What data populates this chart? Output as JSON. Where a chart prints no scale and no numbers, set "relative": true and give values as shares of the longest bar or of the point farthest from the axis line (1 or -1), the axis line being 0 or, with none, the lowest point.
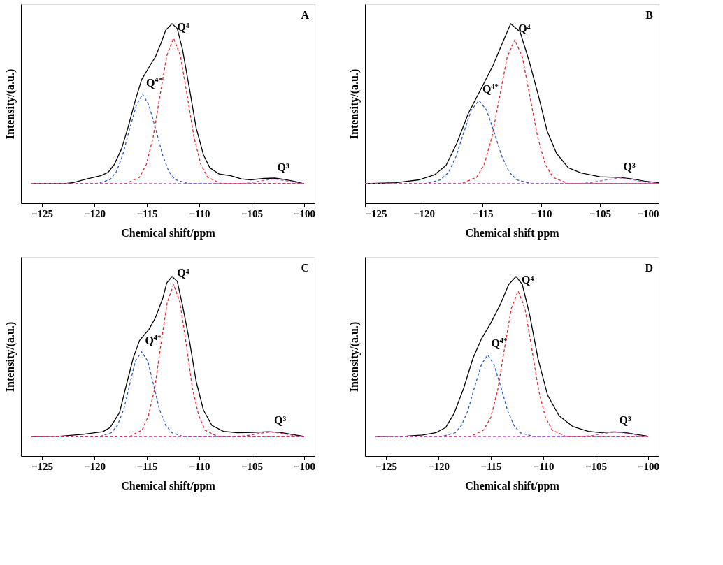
{
  "chart_data": [
    {
      "type": "line",
      "title": "A",
      "xlabel": "Chemical shift/ppm",
      "ylabel": "Intensity/(a.u.)",
      "relative": true,
      "xlim": [
        -127,
        -99
      ],
      "xticks": [
        -125,
        -120,
        -115,
        -110,
        -105,
        -100
      ],
      "grid": false,
      "marker": "none",
      "series": [
        {
          "color": "#000000",
          "line_style": "solid",
          "x": [
            -126,
            -122.8,
            -122.0,
            -120.7,
            -119.4,
            -118.7,
            -118.1,
            -117.4,
            -116.8,
            -116.1,
            -115.5,
            -114.6,
            -114.2,
            -113.7,
            -113.2,
            -112.6,
            -112.1,
            -111.6,
            -110.9,
            -110.3,
            -109.6,
            -109.0,
            -108.1,
            -107.0,
            -106.0,
            -105.1,
            -103.8,
            -102.8,
            -101.8,
            -100.8,
            -100.1
          ],
          "values": [
            0,
            0,
            0.007,
            0.03,
            0.05,
            0.07,
            0.12,
            0.22,
            0.35,
            0.52,
            0.65,
            0.75,
            0.79,
            0.87,
            0.96,
            1.0,
            0.97,
            0.84,
            0.58,
            0.35,
            0.18,
            0.1,
            0.06,
            0.05,
            0.03,
            0.024,
            0.033,
            0.035,
            0.026,
            0.013,
            0
          ]
        },
        {
          "color": "#2a5cc8",
          "line_style": "dashed",
          "x": [
            -126,
            -119.8,
            -118.5,
            -117.9,
            -117.3,
            -116.65,
            -116.0,
            -115.4,
            -114.8,
            -114.15,
            -113.5,
            -112.9,
            -112.3,
            -111.0,
            -100
          ],
          "values": [
            0,
            0,
            0.025,
            0.075,
            0.18,
            0.34,
            0.49,
            0.56,
            0.49,
            0.34,
            0.18,
            0.075,
            0.025,
            0,
            0
          ]
        },
        {
          "color": "#e8202a",
          "line_style": "dashed",
          "x": [
            -126,
            -117,
            -115.7,
            -115.05,
            -114.4,
            -113.75,
            -113.1,
            -112.45,
            -111.8,
            -111.15,
            -110.5,
            -109.85,
            -109.2,
            -107.9,
            -100
          ],
          "values": [
            0,
            0,
            0.04,
            0.12,
            0.29,
            0.55,
            0.8,
            0.91,
            0.8,
            0.55,
            0.29,
            0.12,
            0.04,
            0,
            0
          ]
        },
        {
          "color": "#c850c0",
          "line_style": "dashed",
          "x": [
            -126,
            -106.5,
            -105.3,
            -104.1,
            -102.9,
            -101.7,
            -100.5,
            -100
          ],
          "values": [
            0,
            0,
            0.004,
            0.018,
            0.03,
            0.018,
            0.004,
            0
          ]
        }
      ],
      "annotations": [
        {
          "text": "Q⁴",
          "x": -112.45,
          "y": 0.91
        },
        {
          "text": "Q$^{4*}$",
          "x": -115.4,
          "y": 0.56
        },
        {
          "text": "Q³",
          "x": -102.9,
          "y": 0.03
        }
      ]
    },
    {
      "type": "line",
      "title": "B",
      "xlabel": "Chemical shift ppm",
      "ylabel": "Intensity/(a.u.)",
      "relative": true,
      "xlim": [
        -125,
        -100
      ],
      "xticks": [
        -125,
        -120,
        -115,
        -110,
        -105,
        -100
      ],
      "grid": false,
      "marker": "none",
      "series": [
        {
          "color": "#000000",
          "line_style": "solid",
          "x": [
            -125,
            -122.4,
            -120.4,
            -119.1,
            -118.1,
            -117.2,
            -116.2,
            -115.0,
            -114.1,
            -113.3,
            -112.6,
            -111.8,
            -111.0,
            -110.2,
            -109.5,
            -108.7,
            -107.7,
            -106.6,
            -105.0,
            -103.3,
            -102.3,
            -101.2,
            -100
          ],
          "values": [
            0,
            0.006,
            0.024,
            0.055,
            0.115,
            0.25,
            0.44,
            0.61,
            0.74,
            0.88,
            1.0,
            0.95,
            0.76,
            0.54,
            0.33,
            0.19,
            0.1,
            0.067,
            0.043,
            0.039,
            0.03,
            0.016,
            0.006
          ]
        },
        {
          "color": "#2a5cc8",
          "line_style": "dashed",
          "x": [
            -125,
            -119.9,
            -118.6,
            -117.9,
            -117.25,
            -116.6,
            -115.95,
            -115.3,
            -114.65,
            -114.0,
            -113.35,
            -112.7,
            -112.05,
            -110.8,
            -100
          ],
          "values": [
            0,
            0,
            0.023,
            0.07,
            0.17,
            0.32,
            0.46,
            0.52,
            0.46,
            0.32,
            0.17,
            0.07,
            0.023,
            0,
            0
          ]
        },
        {
          "color": "#e8202a",
          "line_style": "dashed",
          "x": [
            -125,
            -116.8,
            -115.5,
            -114.85,
            -114.2,
            -113.55,
            -112.9,
            -112.25,
            -111.6,
            -110.95,
            -110.3,
            -109.65,
            -109.0,
            -107.7,
            -100
          ],
          "values": [
            0,
            0,
            0.04,
            0.12,
            0.29,
            0.54,
            0.79,
            0.9,
            0.79,
            0.54,
            0.29,
            0.12,
            0.04,
            0,
            0
          ]
        },
        {
          "color": "#c850c0",
          "line_style": "dashed",
          "x": [
            -125,
            -107.2,
            -105.9,
            -104.6,
            -103.3,
            -102.0,
            -100.7,
            -100
          ],
          "values": [
            0,
            0,
            0.005,
            0.022,
            0.036,
            0.022,
            0.005,
            0
          ]
        }
      ],
      "annotations": [
        {
          "text": "Q⁴",
          "x": -112.25,
          "y": 0.9
        },
        {
          "text": "Q$^{4*}$",
          "x": -115.3,
          "y": 0.52
        },
        {
          "text": "Q³",
          "x": -103.3,
          "y": 0.036
        }
      ]
    },
    {
      "type": "line",
      "title": "C",
      "xlabel": "Chemical shift/ppm",
      "ylabel": "Intensity/(a.u.)",
      "relative": true,
      "xlim": [
        -127,
        -99
      ],
      "xticks": [
        -125,
        -120,
        -115,
        -110,
        -105,
        -100
      ],
      "grid": false,
      "marker": "none",
      "series": [
        {
          "color": "#000000",
          "line_style": "solid",
          "x": [
            -126,
            -123.3,
            -121.1,
            -119.2,
            -118.5,
            -117.6,
            -117.0,
            -116.3,
            -115.7,
            -114.8,
            -114.2,
            -113.5,
            -113.1,
            -112.6,
            -112.1,
            -111.6,
            -110.9,
            -110.3,
            -109.6,
            -108.8,
            -107.7,
            -106.4,
            -104.9,
            -103.4,
            -102.3,
            -101.2,
            -100
          ],
          "values": [
            0,
            0.002,
            0.014,
            0.03,
            0.056,
            0.15,
            0.31,
            0.49,
            0.6,
            0.67,
            0.74,
            0.86,
            0.96,
            1.0,
            0.97,
            0.82,
            0.585,
            0.345,
            0.165,
            0.07,
            0.032,
            0.024,
            0.026,
            0.03,
            0.026,
            0.014,
            0
          ]
        },
        {
          "color": "#2a5cc8",
          "line_style": "dashed",
          "x": [
            -126,
            -119.5,
            -118.4,
            -117.8,
            -117.2,
            -116.65,
            -116.1,
            -115.5,
            -114.9,
            -114.35,
            -113.8,
            -113.2,
            -112.6,
            -111.5,
            -100
          ],
          "values": [
            0,
            0,
            0.023,
            0.07,
            0.17,
            0.32,
            0.47,
            0.53,
            0.47,
            0.32,
            0.17,
            0.07,
            0.023,
            0,
            0
          ]
        },
        {
          "color": "#e8202a",
          "line_style": "dashed",
          "x": [
            -126,
            -116.65,
            -115.45,
            -114.85,
            -114.25,
            -113.65,
            -113.05,
            -112.45,
            -111.85,
            -111.25,
            -110.65,
            -110.05,
            -109.45,
            -108.25,
            -100
          ],
          "values": [
            0,
            0,
            0.04,
            0.13,
            0.3,
            0.58,
            0.84,
            0.95,
            0.84,
            0.58,
            0.3,
            0.13,
            0.04,
            0,
            0
          ]
        },
        {
          "color": "#e0207a",
          "line_style": "dashed",
          "x": [
            -126,
            -106.8,
            -105.6,
            -104.4,
            -103.2,
            -102.0,
            -100.8,
            -100
          ],
          "values": [
            0,
            0,
            0.004,
            0.018,
            0.029,
            0.018,
            0.004,
            0
          ]
        }
      ],
      "annotations": [
        {
          "text": "Q⁴",
          "x": -112.45,
          "y": 0.95
        },
        {
          "text": "Q$^{4*}$",
          "x": -115.5,
          "y": 0.53
        },
        {
          "text": "Q³",
          "x": -103.2,
          "y": 0.029
        }
      ]
    },
    {
      "type": "line",
      "title": "D",
      "xlabel": "Chemical shift/ppm",
      "ylabel": "Intensity/(a.u.)",
      "relative": true,
      "xlim": [
        -127,
        -99
      ],
      "xticks": [
        -125,
        -120,
        -115,
        -110,
        -105,
        -100
      ],
      "grid": false,
      "marker": "none",
      "series": [
        {
          "color": "#000000",
          "line_style": "solid",
          "x": [
            -126,
            -123.0,
            -121.5,
            -120.2,
            -119.3,
            -118.5,
            -117.6,
            -116.7,
            -115.9,
            -115.0,
            -114.1,
            -113.3,
            -112.6,
            -112.0,
            -111.3,
            -110.5,
            -109.6,
            -108.5,
            -107.2,
            -105.7,
            -104.6,
            -103.3,
            -102.2,
            -101.1,
            -100.1
          ],
          "values": [
            0,
            0.003,
            0.009,
            0.025,
            0.057,
            0.145,
            0.3,
            0.49,
            0.61,
            0.71,
            0.825,
            0.95,
            1.0,
            0.95,
            0.76,
            0.485,
            0.26,
            0.13,
            0.063,
            0.032,
            0.025,
            0.029,
            0.025,
            0.013,
            0.003
          ]
        },
        {
          "color": "#2a5cc8",
          "line_style": "dashed",
          "x": [
            -126,
            -119.7,
            -118.4,
            -117.8,
            -117.2,
            -116.55,
            -115.9,
            -115.3,
            -114.7,
            -114.05,
            -113.4,
            -112.8,
            -112.2,
            -110.9,
            -100
          ],
          "values": [
            0,
            0,
            0.023,
            0.07,
            0.16,
            0.31,
            0.45,
            0.51,
            0.45,
            0.31,
            0.16,
            0.07,
            0.023,
            0,
            0
          ]
        },
        {
          "color": "#e8202a",
          "line_style": "dashed",
          "x": [
            -126,
            -116.95,
            -115.7,
            -115.0,
            -114.35,
            -113.7,
            -113.05,
            -112.4,
            -111.75,
            -111.1,
            -110.45,
            -109.8,
            -109.15,
            -107.85,
            -100
          ],
          "values": [
            0,
            0,
            0.04,
            0.12,
            0.29,
            0.55,
            0.8,
            0.91,
            0.8,
            0.55,
            0.29,
            0.12,
            0.04,
            0,
            0
          ]
        },
        {
          "color": "#c850c0",
          "line_style": "dashed",
          "x": [
            -126,
            -106.7,
            -105.5,
            -104.3,
            -103.1,
            -101.9,
            -100.7,
            -100
          ],
          "values": [
            0,
            0,
            0.004,
            0.018,
            0.029,
            0.018,
            0.004,
            0
          ]
        }
      ],
      "annotations": [
        {
          "text": "Q⁴",
          "x": -112.4,
          "y": 0.91
        },
        {
          "text": "Q$^{4*}$",
          "x": -115.3,
          "y": 0.51
        },
        {
          "text": "Q³",
          "x": -103.1,
          "y": 0.029
        }
      ]
    }
  ]
}
